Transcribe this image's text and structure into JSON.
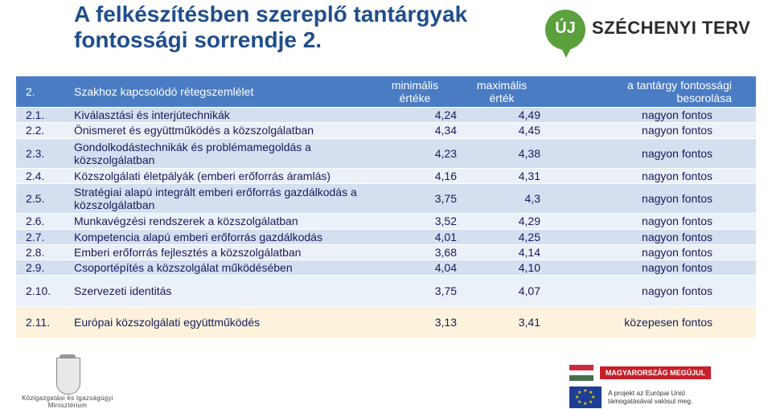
{
  "title": {
    "line1": "A felkészítésben szereplő tantárgyak",
    "line2": "fontossági sorrendje 2."
  },
  "logo": {
    "badge": "ÚJ",
    "name": "SZÉCHENYI TERV"
  },
  "table": {
    "header": {
      "num": "2.",
      "name": "Szakhoz kapcsolódó rétegszemlélet",
      "min_line1": "minimális",
      "min_line2": "értéke",
      "max_line1": "maximális",
      "max_line2": "érték",
      "rank_line1": "a tantárgy fontossági",
      "rank_line2": "besorolása"
    },
    "rows": [
      {
        "num": "2.1.",
        "name": "Kiválasztási és interjútechnikák",
        "min": "4,24",
        "max": "4,49",
        "rank": "nagyon fontos"
      },
      {
        "num": "2.2.",
        "name": "Önismeret és együttműködés a közszolgálatban",
        "min": "4,34",
        "max": "4,45",
        "rank": "nagyon fontos"
      },
      {
        "num": "2.3.",
        "name": "Gondolkodástechnikák és problémamegoldás a közszolgálatban",
        "min": "4,23",
        "max": "4,38",
        "rank": "nagyon fontos"
      },
      {
        "num": "2.4.",
        "name": "Közszolgálati életpályák (emberi erőforrás áramlás)",
        "min": "4,16",
        "max": "4,31",
        "rank": "nagyon fontos"
      },
      {
        "num": "2.5.",
        "name_line1": "Stratégiai alapú integrált emberi erőforrás gazdálkodás a",
        "name_line2": "közszolgálatban",
        "min": "3,75",
        "max": "4,3",
        "rank": "nagyon fontos"
      },
      {
        "num": "2.6.",
        "name": "Munkavégzési rendszerek a közszolgálatban",
        "min": "3,52",
        "max": "4,29",
        "rank": "nagyon fontos"
      },
      {
        "num": "2.7.",
        "name": "Kompetencia alapú emberi erőforrás gazdálkodás",
        "min": "4,01",
        "max": "4,25",
        "rank": "nagyon fontos"
      },
      {
        "num": "2.8.",
        "name": "Emberi erőforrás fejlesztés a közszolgálatban",
        "min": "3,68",
        "max": "4,14",
        "rank": "nagyon fontos"
      },
      {
        "num": "2.9.",
        "name": "Csoportépítés a közszolgálat működésében",
        "min": "4,04",
        "max": "4,10",
        "rank": "nagyon fontos"
      },
      {
        "num": "2.10.",
        "name": "Szervezeti identitás",
        "min": "3,75",
        "max": "4,07",
        "rank": "nagyon fontos"
      },
      {
        "num": "2.11.",
        "name": "Európai közszolgálati együttműködés",
        "min": "3,13",
        "max": "3,41",
        "rank": "közepesen fontos"
      }
    ]
  },
  "footer": {
    "ministry_line1": "Közigazgatási és Igazságügyi",
    "ministry_line2": "Minisztérium",
    "banner": "MAGYARORSZÁG MEGÚJUL",
    "eu_line1": "A projekt az Európai Unió",
    "eu_line2": "támogatásával valósul meg."
  },
  "colors": {
    "title": "#1f4e8c",
    "header_bg": "#4a7cc4",
    "row_dark": "#d4dff0",
    "row_light": "#ebf1f9",
    "row_cream": "#fdf3dc",
    "logo_green": "#5aa03c"
  }
}
